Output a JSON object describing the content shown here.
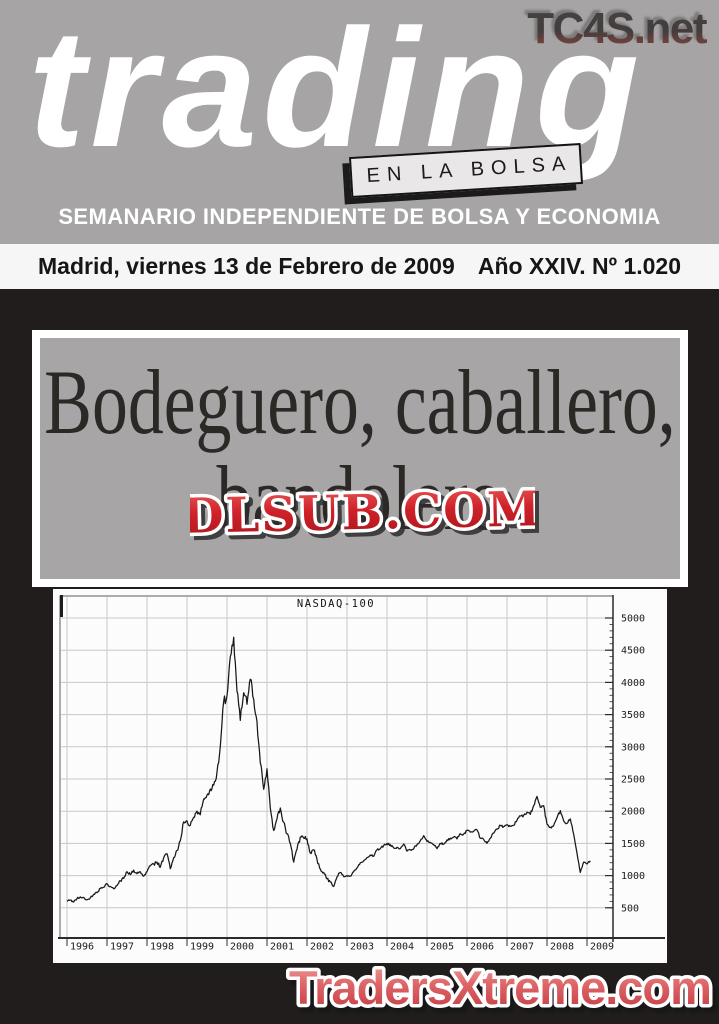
{
  "page": {
    "watermark_top": "TC4S.net",
    "masthead": {
      "logo": "trading",
      "badge": "EN LA BOLSA",
      "tagline": "SEMANARIO INDEPENDIENTE DE BOLSA Y ECONOMIA"
    },
    "dateline": {
      "left": "Madrid, viernes 13 de Febrero de 2009",
      "right": "Año XXIV. Nº 1.020"
    },
    "headline": {
      "line1": "Bodeguero, caballero,",
      "line2": "bandolero"
    },
    "watermark_center": "DLSUB.COM",
    "watermark_bottom": "TradersXtreme.com",
    "colors": {
      "header_gray": "#a6a4a5",
      "page_black": "#211d1d",
      "headline_gray": "#a7a5a6",
      "watermark_red": "#c6242b",
      "watermark_pink": "#e2807f"
    }
  },
  "chart_data": {
    "type": "line",
    "title": "NASDAQ-100",
    "series_name": "NASDAQ-100",
    "x_start": "1996-01",
    "x_end": "2009-02",
    "x_step_months": 1,
    "x_tick_labels": [
      "1996",
      "1997",
      "1998",
      "1999",
      "2000",
      "2001",
      "2002",
      "2003",
      "2004",
      "2005",
      "2006",
      "2007",
      "2008",
      "2009"
    ],
    "y_ticks": [
      500,
      1000,
      1500,
      2000,
      2500,
      3000,
      3500,
      4000,
      4500,
      5000
    ],
    "y_minor_step": 100,
    "ylim": [
      0,
      5300
    ],
    "grid": true,
    "y_axis_side": "right",
    "legend": "none",
    "values": [
      600,
      620,
      590,
      645,
      670,
      660,
      625,
      655,
      710,
      735,
      800,
      820,
      875,
      830,
      795,
      845,
      920,
      955,
      1060,
      1015,
      1085,
      1030,
      1060,
      990,
      1060,
      1150,
      1180,
      1210,
      1130,
      1280,
      1340,
      1105,
      1280,
      1390,
      1540,
      1836,
      1850,
      1780,
      1905,
      2000,
      1945,
      2190,
      2250,
      2345,
      2405,
      2605,
      3005,
      3707,
      3790,
      4400,
      4700,
      3860,
      3410,
      3840,
      3660,
      4050,
      3740,
      3390,
      2750,
      2340,
      2660,
      2050,
      1700,
      1880,
      2050,
      1830,
      1650,
      1500,
      1210,
      1410,
      1600,
      1580,
      1570,
      1350,
      1400,
      1250,
      1100,
      1050,
      950,
      900,
      830,
      980,
      1050,
      985,
      1000,
      990,
      1060,
      1120,
      1200,
      1230,
      1280,
      1320,
      1300,
      1400,
      1420,
      1467,
      1500,
      1480,
      1430,
      1440,
      1420,
      1490,
      1380,
      1400,
      1415,
      1480,
      1540,
      1620,
      1530,
      1515,
      1480,
      1420,
      1500,
      1490,
      1555,
      1580,
      1600,
      1570,
      1650,
      1645,
      1700,
      1675,
      1690,
      1710,
      1580,
      1560,
      1500,
      1580,
      1660,
      1720,
      1780,
      1760,
      1790,
      1765,
      1780,
      1860,
      1925,
      1935,
      1985,
      1950,
      2090,
      2230,
      2060,
      2085,
      1800,
      1750,
      1780,
      1900,
      2010,
      1850,
      1810,
      1880,
      1640,
      1350,
      1050,
      1210,
      1180,
      1230
    ]
  }
}
